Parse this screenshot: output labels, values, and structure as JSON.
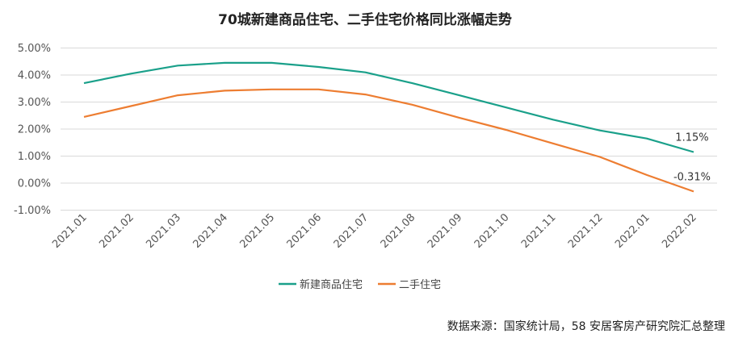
{
  "chart_data": {
    "type": "line",
    "title": "70城新建商品住宅、二手住宅价格同比涨幅走势",
    "categories": [
      "2021.01",
      "2021.02",
      "2021.03",
      "2021.04",
      "2021.05",
      "2021.06",
      "2021.07",
      "2021.08",
      "2021.09",
      "2021.10",
      "2021.11",
      "2021.12",
      "2022.01",
      "2022.02"
    ],
    "series": [
      {
        "name": "新建商品住宅",
        "color": "#1aa08a",
        "values": [
          3.7,
          4.05,
          4.35,
          4.45,
          4.45,
          4.3,
          4.1,
          3.7,
          3.25,
          2.8,
          2.35,
          1.95,
          1.65,
          1.15
        ]
      },
      {
        "name": "二手住宅",
        "color": "#ed7d31",
        "values": [
          2.45,
          2.85,
          3.25,
          3.42,
          3.47,
          3.47,
          3.28,
          2.9,
          2.42,
          1.97,
          1.47,
          0.97,
          0.3,
          -0.31
        ]
      }
    ],
    "yticks": [
      "5.00%",
      "4.00%",
      "3.00%",
      "2.00%",
      "1.00%",
      "0.00%",
      "-1.00%"
    ],
    "ylim": [
      -1,
      5
    ],
    "xlabel": "",
    "ylabel": "",
    "data_labels": [
      {
        "series": 0,
        "index": 13,
        "text": "1.15%"
      },
      {
        "series": 1,
        "index": 13,
        "text": "-0.31%"
      }
    ],
    "legend_position": "bottom",
    "grid": true
  },
  "source": "数据来源：国家统计局，58 安居客房产研究院汇总整理"
}
